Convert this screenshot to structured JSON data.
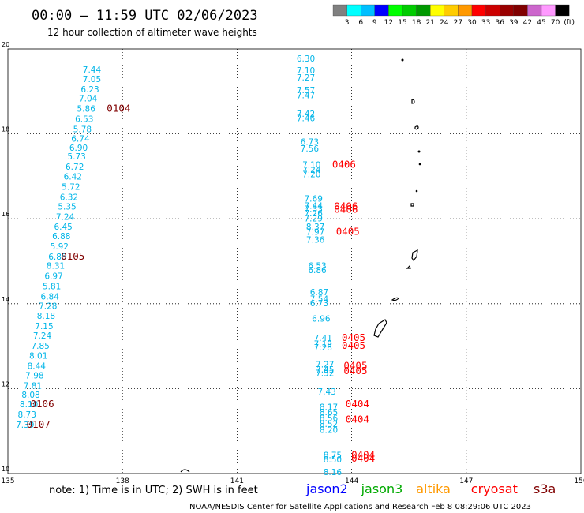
{
  "title": "00:00 — 11:59 UTC 02/06/2023",
  "subtitle": "12 hour collection of altimeter wave heights",
  "colorbar": {
    "colors": [
      "#808080",
      "#00ffff",
      "#00bfff",
      "#0000ff",
      "#00ff00",
      "#00cc00",
      "#009900",
      "#ffff00",
      "#ffcc00",
      "#ff9900",
      "#ff0000",
      "#cc0000",
      "#990000",
      "#800000",
      "#cc66cc",
      "#ff99ff",
      "#000000"
    ],
    "labels": [
      "3",
      "6",
      "9",
      "12",
      "15",
      "18",
      "21",
      "24",
      "27",
      "30",
      "33",
      "36",
      "39",
      "42",
      "45",
      "70",
      "(ft)"
    ]
  },
  "legend_note": "note:  1) Time is in UTC;  2) SWH is in feet",
  "satellites": [
    {
      "name": "jason2",
      "color": "#0000ff"
    },
    {
      "name": "jason3",
      "color": "#00aa00"
    },
    {
      "name": "altika",
      "color": "#ff9900"
    },
    {
      "name": "cryosat",
      "color": "#ff0000"
    },
    {
      "name": "s3a",
      "color": "#800000"
    }
  ],
  "footer": "NOAA/NESDIS Center for Satellite Applications and Research    Feb  8 08:29:06 UTC 2023",
  "chart_data": {
    "type": "scatter",
    "xlim": [
      135,
      150
    ],
    "ylim": [
      10,
      20
    ],
    "xticks": [
      "135",
      "138",
      "141",
      "144",
      "147",
      "150"
    ],
    "yticks": [
      "10",
      "12",
      "14",
      "16",
      "18",
      "20"
    ],
    "swh_points": [
      {
        "lon": 137.2,
        "lat": 19.44,
        "v": "7.44"
      },
      {
        "lon": 137.2,
        "lat": 19.22,
        "v": "7.05"
      },
      {
        "lon": 137.15,
        "lat": 18.98,
        "v": "6.23"
      },
      {
        "lon": 137.1,
        "lat": 18.76,
        "v": "7.04"
      },
      {
        "lon": 137.05,
        "lat": 18.52,
        "v": "5.86"
      },
      {
        "lon": 137.0,
        "lat": 18.28,
        "v": "6.53"
      },
      {
        "lon": 136.95,
        "lat": 18.04,
        "v": "5.78"
      },
      {
        "lon": 136.9,
        "lat": 17.82,
        "v": "6.74"
      },
      {
        "lon": 136.85,
        "lat": 17.6,
        "v": "6.90"
      },
      {
        "lon": 136.8,
        "lat": 17.4,
        "v": "5.73"
      },
      {
        "lon": 136.75,
        "lat": 17.16,
        "v": "6.72"
      },
      {
        "lon": 136.7,
        "lat": 16.92,
        "v": "6.42"
      },
      {
        "lon": 136.65,
        "lat": 16.68,
        "v": "5.72"
      },
      {
        "lon": 136.6,
        "lat": 16.44,
        "v": "6.32"
      },
      {
        "lon": 136.55,
        "lat": 16.22,
        "v": "5.35"
      },
      {
        "lon": 136.5,
        "lat": 15.98,
        "v": "7.24"
      },
      {
        "lon": 136.45,
        "lat": 15.74,
        "v": "6.45"
      },
      {
        "lon": 136.4,
        "lat": 15.52,
        "v": "6.88"
      },
      {
        "lon": 136.35,
        "lat": 15.28,
        "v": "5.92"
      },
      {
        "lon": 136.3,
        "lat": 15.04,
        "v": "6.85"
      },
      {
        "lon": 136.25,
        "lat": 14.82,
        "v": "8.31"
      },
      {
        "lon": 136.2,
        "lat": 14.58,
        "v": "6.97"
      },
      {
        "lon": 136.15,
        "lat": 14.34,
        "v": "5.81"
      },
      {
        "lon": 136.1,
        "lat": 14.1,
        "v": "6.84"
      },
      {
        "lon": 136.05,
        "lat": 13.88,
        "v": "7.28"
      },
      {
        "lon": 136.0,
        "lat": 13.64,
        "v": "8.18"
      },
      {
        "lon": 135.95,
        "lat": 13.4,
        "v": "7.15"
      },
      {
        "lon": 135.9,
        "lat": 13.18,
        "v": "7.24"
      },
      {
        "lon": 135.85,
        "lat": 12.94,
        "v": "7.85"
      },
      {
        "lon": 135.8,
        "lat": 12.7,
        "v": "8.01"
      },
      {
        "lon": 135.75,
        "lat": 12.46,
        "v": "8.44"
      },
      {
        "lon": 135.7,
        "lat": 12.24,
        "v": "7.98"
      },
      {
        "lon": 135.65,
        "lat": 12.0,
        "v": "7.81"
      },
      {
        "lon": 135.6,
        "lat": 11.78,
        "v": "8.08"
      },
      {
        "lon": 135.55,
        "lat": 11.56,
        "v": "8.10"
      },
      {
        "lon": 135.5,
        "lat": 11.32,
        "v": "8.73"
      },
      {
        "lon": 135.45,
        "lat": 11.08,
        "v": "7.39"
      },
      {
        "lon": 142.8,
        "lat": 19.7,
        "v": "6.30"
      },
      {
        "lon": 142.8,
        "lat": 19.42,
        "v": "7.10"
      },
      {
        "lon": 142.8,
        "lat": 19.26,
        "v": "7.27"
      },
      {
        "lon": 142.8,
        "lat": 18.96,
        "v": "7.57"
      },
      {
        "lon": 142.8,
        "lat": 18.84,
        "v": "7.47"
      },
      {
        "lon": 142.8,
        "lat": 18.4,
        "v": "7.42"
      },
      {
        "lon": 142.8,
        "lat": 18.3,
        "v": "7.46"
      },
      {
        "lon": 142.9,
        "lat": 17.74,
        "v": "6.73"
      },
      {
        "lon": 142.9,
        "lat": 17.58,
        "v": "7.56"
      },
      {
        "lon": 142.95,
        "lat": 17.2,
        "v": "7.10"
      },
      {
        "lon": 142.95,
        "lat": 17.08,
        "v": "7.24"
      },
      {
        "lon": 142.95,
        "lat": 16.98,
        "v": "7.20"
      },
      {
        "lon": 143.0,
        "lat": 16.4,
        "v": "7.69"
      },
      {
        "lon": 143.0,
        "lat": 16.24,
        "v": "7.44"
      },
      {
        "lon": 143.0,
        "lat": 16.16,
        "v": "7.33"
      },
      {
        "lon": 143.0,
        "lat": 16.06,
        "v": "7.26"
      },
      {
        "lon": 143.0,
        "lat": 15.94,
        "v": "7.29"
      },
      {
        "lon": 143.05,
        "lat": 15.74,
        "v": "8.37"
      },
      {
        "lon": 143.05,
        "lat": 15.62,
        "v": "7.97"
      },
      {
        "lon": 143.05,
        "lat": 15.44,
        "v": "7.36"
      },
      {
        "lon": 143.1,
        "lat": 14.82,
        "v": "6.53"
      },
      {
        "lon": 143.1,
        "lat": 14.72,
        "v": "6.86"
      },
      {
        "lon": 143.15,
        "lat": 14.2,
        "v": "6.87"
      },
      {
        "lon": 143.15,
        "lat": 14.04,
        "v": "7.54"
      },
      {
        "lon": 143.15,
        "lat": 13.94,
        "v": "6.73"
      },
      {
        "lon": 143.2,
        "lat": 13.58,
        "v": "6.96"
      },
      {
        "lon": 143.25,
        "lat": 13.12,
        "v": "7.41"
      },
      {
        "lon": 143.25,
        "lat": 12.98,
        "v": "7.19"
      },
      {
        "lon": 143.25,
        "lat": 12.9,
        "v": "7.28"
      },
      {
        "lon": 143.3,
        "lat": 12.5,
        "v": "7.27"
      },
      {
        "lon": 143.3,
        "lat": 12.38,
        "v": "7.45"
      },
      {
        "lon": 143.3,
        "lat": 12.3,
        "v": "7.52"
      },
      {
        "lon": 143.35,
        "lat": 11.86,
        "v": "7.43"
      },
      {
        "lon": 143.4,
        "lat": 11.5,
        "v": "8.17"
      },
      {
        "lon": 143.4,
        "lat": 11.38,
        "v": "8.65"
      },
      {
        "lon": 143.4,
        "lat": 11.24,
        "v": "8.56"
      },
      {
        "lon": 143.4,
        "lat": 11.1,
        "v": "8.52"
      },
      {
        "lon": 143.4,
        "lat": 10.96,
        "v": "8.20"
      },
      {
        "lon": 143.5,
        "lat": 10.36,
        "v": "8.75"
      },
      {
        "lon": 143.5,
        "lat": 10.26,
        "v": "8.50"
      },
      {
        "lon": 143.5,
        "lat": 9.96,
        "v": "8.16"
      }
    ],
    "time_labels": [
      {
        "lon": 137.9,
        "lat": 18.52,
        "text": "0104",
        "sat": "s3a"
      },
      {
        "lon": 136.7,
        "lat": 15.04,
        "text": "0105",
        "sat": "s3a"
      },
      {
        "lon": 135.9,
        "lat": 11.56,
        "text": "0106",
        "sat": "s3a"
      },
      {
        "lon": 135.8,
        "lat": 11.08,
        "text": "0107",
        "sat": "s3a"
      },
      {
        "lon": 143.8,
        "lat": 17.2,
        "text": "0406",
        "sat": "cryosat"
      },
      {
        "lon": 143.85,
        "lat": 16.22,
        "text": "0406",
        "sat": "cryosat"
      },
      {
        "lon": 143.85,
        "lat": 16.14,
        "text": "0406",
        "sat": "cryosat"
      },
      {
        "lon": 143.9,
        "lat": 15.62,
        "text": "0405",
        "sat": "cryosat"
      },
      {
        "lon": 144.05,
        "lat": 13.12,
        "text": "0405",
        "sat": "cryosat"
      },
      {
        "lon": 144.05,
        "lat": 12.94,
        "text": "0405",
        "sat": "cryosat"
      },
      {
        "lon": 144.1,
        "lat": 12.46,
        "text": "0405",
        "sat": "cryosat"
      },
      {
        "lon": 144.1,
        "lat": 12.34,
        "text": "0405",
        "sat": "cryosat"
      },
      {
        "lon": 144.15,
        "lat": 11.56,
        "text": "0404",
        "sat": "cryosat"
      },
      {
        "lon": 144.15,
        "lat": 11.2,
        "text": "0404",
        "sat": "cryosat"
      },
      {
        "lon": 144.3,
        "lat": 10.36,
        "text": "0404",
        "sat": "cryosat"
      },
      {
        "lon": 144.3,
        "lat": 10.28,
        "text": "0404",
        "sat": "cryosat"
      }
    ]
  }
}
